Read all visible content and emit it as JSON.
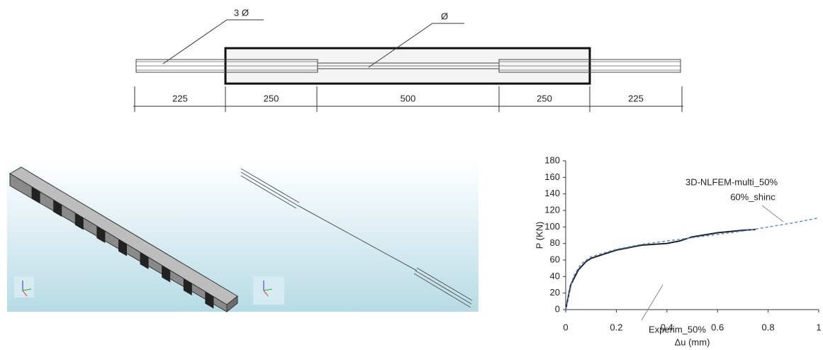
{
  "drawing": {
    "labels": [
      "3 Ø",
      "Ø"
    ],
    "dimensions": [
      "225",
      "250",
      "500",
      "250",
      "225"
    ]
  },
  "chart_data": {
    "type": "line",
    "xlabel": "Δu (mm)",
    "ylabel": "P (KN)",
    "xlim": [
      0,
      1
    ],
    "xticks": [
      0,
      0.2,
      0.4,
      0.6,
      0.8,
      1
    ],
    "ylim": [
      0,
      180
    ],
    "yticks": [
      0,
      20,
      40,
      60,
      80,
      100,
      120,
      140,
      160,
      180
    ],
    "series": [
      {
        "name": "Experim_50%",
        "color": "#222222",
        "dashed": false,
        "x": [
          0,
          0.02,
          0.05,
          0.08,
          0.1,
          0.15,
          0.2,
          0.3,
          0.4,
          0.45,
          0.5,
          0.6,
          0.7,
          0.75
        ],
        "values": [
          0,
          30,
          48,
          58,
          62,
          67,
          72,
          78,
          80,
          83,
          88,
          93,
          96,
          97
        ]
      },
      {
        "name_lines": [
          "3D-NLFEM-multi_50%",
          "60%_shinc"
        ],
        "color": "#5b8fd0",
        "dashed": true,
        "x": [
          0,
          0.03,
          0.06,
          0.1,
          0.2,
          0.3,
          0.4,
          0.5,
          0.6,
          0.7,
          0.8,
          0.9,
          1
        ],
        "values": [
          0,
          40,
          55,
          64,
          73,
          79,
          83,
          87,
          91,
          95,
          100,
          105,
          111
        ]
      }
    ]
  }
}
